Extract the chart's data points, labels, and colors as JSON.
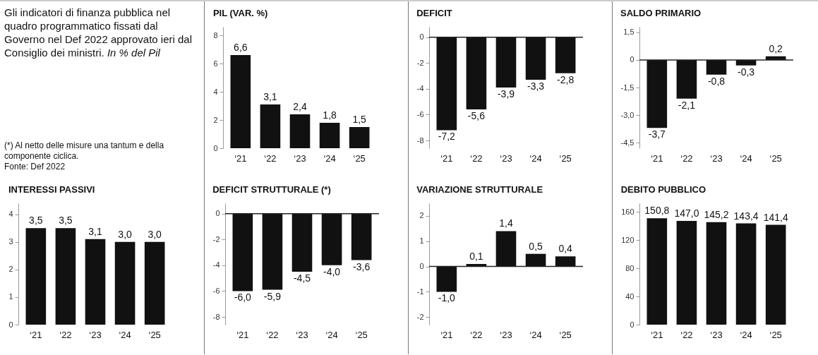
{
  "chart_data": [
    {
      "type": "other",
      "title": "Gli indicatori di finanza pubblica nel quadro programmatico fissati dal Governo nel Def 2022 approvato ieri dal Consiglio dei ministri.",
      "subtitle": "In % del Pil",
      "annotations": [
        "(*) Al netto delle misure una tantum e della componente ciclica.",
        "Fonte: Def 2022"
      ]
    },
    {
      "type": "bar",
      "title": "PIL (VAR. %)",
      "categories": [
        "‘21",
        "‘22",
        "‘23",
        "‘24",
        "‘25"
      ],
      "values": [
        6.6,
        3.1,
        2.4,
        1.8,
        1.5
      ],
      "value_labels": [
        "6,6",
        "3,1",
        "2,4",
        "1,8",
        "1,5"
      ],
      "color": "#111111",
      "ylim": [
        0,
        8.6
      ],
      "yticks": [
        0,
        2,
        4,
        6,
        8
      ]
    },
    {
      "type": "bar",
      "title": "DEFICIT",
      "categories": [
        "‘21",
        "‘22",
        "‘23",
        "‘24",
        "‘25"
      ],
      "values": [
        -7.2,
        -5.6,
        -3.9,
        -3.3,
        -2.8
      ],
      "value_labels": [
        "-7,2",
        "-5,6",
        "-3,9",
        "-3,3",
        "-2,8"
      ],
      "color": "#111111",
      "ylim": [
        -8.6,
        0.8
      ],
      "yticks": [
        0,
        -2,
        -4,
        -6,
        -8
      ],
      "ref_lines": [
        {
          "axis": "y",
          "value": 0
        }
      ]
    },
    {
      "type": "bar",
      "title": "SALDO PRIMARIO",
      "categories": [
        "‘21",
        "‘22",
        "‘23",
        "‘24",
        "‘25"
      ],
      "values": [
        -3.7,
        -2.1,
        -0.8,
        -0.3,
        0.2
      ],
      "value_labels": [
        "-3,7",
        "-2,1",
        "-0,8",
        "-0,3",
        "0,2"
      ],
      "color": "#111111",
      "ylim": [
        -4.8,
        1.8
      ],
      "yticks": [
        {
          "value": 1.5,
          "label": "1,5"
        },
        0,
        {
          "value": -1.5,
          "label": "-1,5"
        },
        {
          "value": -3,
          "label": "-3,0"
        },
        {
          "value": -4.5,
          "label": "-4,5"
        }
      ],
      "ref_lines": [
        {
          "axis": "y",
          "value": 0
        }
      ]
    },
    {
      "type": "bar",
      "title": "INTERESSI PASSIVI",
      "categories": [
        "‘21",
        "‘22",
        "‘23",
        "‘24",
        "‘25"
      ],
      "values": [
        3.5,
        3.5,
        3.1,
        3.0,
        3.0
      ],
      "value_labels": [
        "3,5",
        "3,5",
        "3,1",
        "3,0",
        "3,0"
      ],
      "color": "#111111",
      "ylim": [
        0,
        4.4
      ],
      "yticks": [
        0,
        1,
        2,
        3,
        4
      ]
    },
    {
      "type": "bar",
      "title": "DEFICIT STRUTTURALE (*)",
      "categories": [
        "‘21",
        "‘22",
        "‘23",
        "‘24",
        "‘25"
      ],
      "values": [
        -6.0,
        -5.9,
        -4.5,
        -4.0,
        -3.6
      ],
      "value_labels": [
        "-6,0",
        "-5,9",
        "-4,5",
        "-4,0",
        "-3,6"
      ],
      "color": "#111111",
      "ylim": [
        -8.6,
        0.8
      ],
      "yticks": [
        0,
        -2,
        -4,
        -6,
        -8
      ],
      "ref_lines": [
        {
          "axis": "y",
          "value": 0
        }
      ]
    },
    {
      "type": "bar",
      "title": "VARIAZIONE STRUTTURALE",
      "categories": [
        "‘21",
        "‘22",
        "‘23",
        "‘24",
        "‘25"
      ],
      "values": [
        -1.0,
        0.1,
        1.4,
        0.5,
        0.4
      ],
      "value_labels": [
        "-1,0",
        "0,1",
        "1,4",
        "0,5",
        "0,4"
      ],
      "color": "#111111",
      "ylim": [
        -2.3,
        2.5
      ],
      "yticks": [
        2,
        1,
        0,
        -1,
        -2
      ],
      "ref_lines": [
        {
          "axis": "y",
          "value": 0
        }
      ]
    },
    {
      "type": "bar",
      "title": "DEBITO PUBBLICO",
      "categories": [
        "‘21",
        "‘22",
        "‘23",
        "‘24",
        "‘25"
      ],
      "values": [
        150.8,
        147.0,
        145.2,
        143.4,
        141.4
      ],
      "value_labels": [
        "150,8",
        "147,0",
        "145,2",
        "143,4",
        "141,4"
      ],
      "color": "#111111",
      "ylim": [
        0,
        172
      ],
      "yticks": [
        0,
        40,
        80,
        120,
        160
      ]
    }
  ]
}
